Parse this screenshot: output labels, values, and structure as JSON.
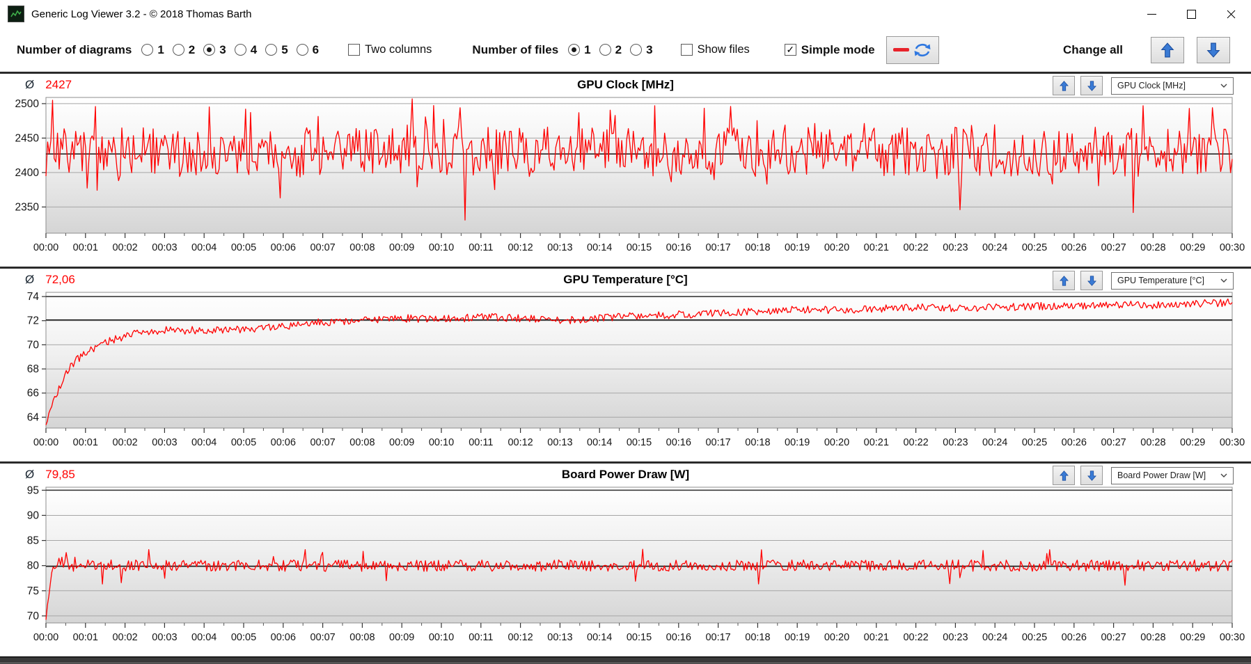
{
  "window": {
    "title": "Generic Log Viewer 3.2 - © 2018 Thomas Barth"
  },
  "toolbar": {
    "number_of_diagrams": {
      "label": "Number of diagrams",
      "options": [
        "1",
        "2",
        "3",
        "4",
        "5",
        "6"
      ],
      "selected": "3"
    },
    "two_columns": {
      "label": "Two columns",
      "checked": false
    },
    "number_of_files": {
      "label": "Number of files",
      "options": [
        "1",
        "2",
        "3"
      ],
      "selected": "1"
    },
    "show_files": {
      "label": "Show files",
      "checked": false
    },
    "simple_mode": {
      "label": "Simple mode",
      "checked": true
    },
    "line_style_button": {
      "icons": [
        "red-dash-icon",
        "refresh-icon"
      ]
    },
    "change_all": {
      "label": "Change all",
      "icons": [
        "up-arrow-icon",
        "down-arrow-icon"
      ]
    }
  },
  "avg_symbol": "Ø",
  "check_mark": "✓",
  "colors": {
    "series": "#ff0000",
    "average_line": "#000000",
    "grid": "#a6a6a6",
    "plot_border": "#8e8e8e",
    "avg_text": "#ff0000",
    "arrow_blue": "#3a7bd5"
  },
  "charts": [
    {
      "title": "GPU Clock [MHz]",
      "average_label": "2427",
      "dropdown_value": "GPU Clock [MHz]",
      "chart_data": {
        "type": "line",
        "title": "GPU Clock [MHz]",
        "average": 2427,
        "ylim": [
          2312,
          2509
        ],
        "y_ticks": [
          2350,
          2400,
          2450,
          2500
        ],
        "x_ticks": [
          "00:00",
          "00:01",
          "00:02",
          "00:03",
          "00:04",
          "00:05",
          "00:06",
          "00:07",
          "00:08",
          "00:09",
          "00:10",
          "00:11",
          "00:12",
          "00:13",
          "00:14",
          "00:15",
          "00:16",
          "00:17",
          "00:18",
          "00:19",
          "00:20",
          "00:21",
          "00:22",
          "00:23",
          "00:24",
          "00:25",
          "00:26",
          "00:27",
          "00:28",
          "00:29",
          "00:30"
        ],
        "x_minutes": 30,
        "grid": true,
        "dark_top": false,
        "profile": [
          [
            0,
            2430
          ],
          [
            30,
            2430
          ]
        ],
        "noise": 36,
        "spike_prob": 0.035,
        "spike_delta": 52,
        "dip_prob": 0.015,
        "dip_delta": -52,
        "events": [
          [
            0.15,
            2505
          ],
          [
            5.05,
            2492
          ],
          [
            9.25,
            2507
          ],
          [
            10.6,
            2331
          ],
          [
            15.4,
            2497
          ],
          [
            17.3,
            2496
          ],
          [
            23.1,
            2346
          ],
          [
            27.5,
            2342
          ],
          [
            28.9,
            2493
          ]
        ],
        "points": 720,
        "seed": 7
      }
    },
    {
      "title": "GPU Temperature [°C]",
      "average_label": "72,06",
      "dropdown_value": "GPU Temperature [°C]",
      "chart_data": {
        "type": "line",
        "title": "GPU Temperature [°C]",
        "average": 72.06,
        "ylim": [
          63.1,
          74.35
        ],
        "y_ticks": [
          64,
          66,
          68,
          70,
          72,
          74
        ],
        "x_ticks": [
          "00:00",
          "00:01",
          "00:02",
          "00:03",
          "00:04",
          "00:05",
          "00:06",
          "00:07",
          "00:08",
          "00:09",
          "00:10",
          "00:11",
          "00:12",
          "00:13",
          "00:14",
          "00:15",
          "00:16",
          "00:17",
          "00:18",
          "00:19",
          "00:20",
          "00:21",
          "00:22",
          "00:23",
          "00:24",
          "00:25",
          "00:26",
          "00:27",
          "00:28",
          "00:29",
          "00:30"
        ],
        "x_minutes": 30,
        "grid": true,
        "dark_top": true,
        "profile": [
          [
            0,
            63.4
          ],
          [
            0.25,
            65.8
          ],
          [
            0.6,
            68.2
          ],
          [
            1.0,
            69.4
          ],
          [
            1.5,
            70.2
          ],
          [
            2.2,
            70.9
          ],
          [
            3,
            71.2
          ],
          [
            4,
            71.2
          ],
          [
            5,
            71.3
          ],
          [
            6,
            71.5
          ],
          [
            7,
            71.9
          ],
          [
            8,
            72.0
          ],
          [
            9,
            72.2
          ],
          [
            10,
            72.1
          ],
          [
            11,
            72.3
          ],
          [
            12,
            72.2
          ],
          [
            13,
            72.0
          ],
          [
            14,
            72.2
          ],
          [
            15,
            72.4
          ],
          [
            16,
            72.5
          ],
          [
            17,
            72.6
          ],
          [
            18,
            72.8
          ],
          [
            19,
            72.9
          ],
          [
            20,
            72.9
          ],
          [
            21,
            73.0
          ],
          [
            22,
            73.1
          ],
          [
            23,
            73.0
          ],
          [
            24,
            73.1
          ],
          [
            25,
            73.2
          ],
          [
            26,
            73.2
          ],
          [
            27,
            73.3
          ],
          [
            28,
            73.3
          ],
          [
            29,
            73.4
          ],
          [
            30,
            73.5
          ]
        ],
        "noise": 0.32,
        "spike_prob": 0,
        "spike_delta": 0,
        "dip_prob": 0,
        "dip_delta": 0,
        "events": [],
        "points": 820,
        "seed": 21
      }
    },
    {
      "title": "Board Power Draw [W]",
      "average_label": "79,85",
      "dropdown_value": "Board Power Draw [W]",
      "chart_data": {
        "type": "line",
        "title": "Board Power Draw [W]",
        "average": 79.85,
        "ylim": [
          68.6,
          95.6
        ],
        "y_ticks": [
          70,
          75,
          80,
          85,
          90,
          95
        ],
        "x_ticks": [
          "00:00",
          "00:01",
          "00:02",
          "00:03",
          "00:04",
          "00:05",
          "00:06",
          "00:07",
          "00:08",
          "00:09",
          "00:10",
          "00:11",
          "00:12",
          "00:13",
          "00:14",
          "00:15",
          "00:16",
          "00:17",
          "00:18",
          "00:19",
          "00:20",
          "00:21",
          "00:22",
          "00:23",
          "00:24",
          "00:25",
          "00:26",
          "00:27",
          "00:28",
          "00:29",
          "00:30"
        ],
        "x_minutes": 30,
        "grid": true,
        "dark_top": true,
        "profile": [
          [
            0,
            69
          ],
          [
            0.08,
            75
          ],
          [
            0.2,
            80.5
          ],
          [
            0.4,
            81
          ],
          [
            0.7,
            79
          ],
          [
            1.0,
            80
          ],
          [
            30,
            80
          ]
        ],
        "noise": 1.15,
        "spike_prob": 0.02,
        "spike_delta": 2.6,
        "dip_prob": 0.012,
        "dip_delta": -3.2,
        "events": [
          [
            0.5,
            82.6
          ],
          [
            1.9,
            76.6
          ],
          [
            2.6,
            83.2
          ],
          [
            8.6,
            77.0
          ],
          [
            14.9,
            76.9
          ],
          [
            25.3,
            82.4
          ]
        ],
        "points": 820,
        "seed": 42
      }
    }
  ]
}
